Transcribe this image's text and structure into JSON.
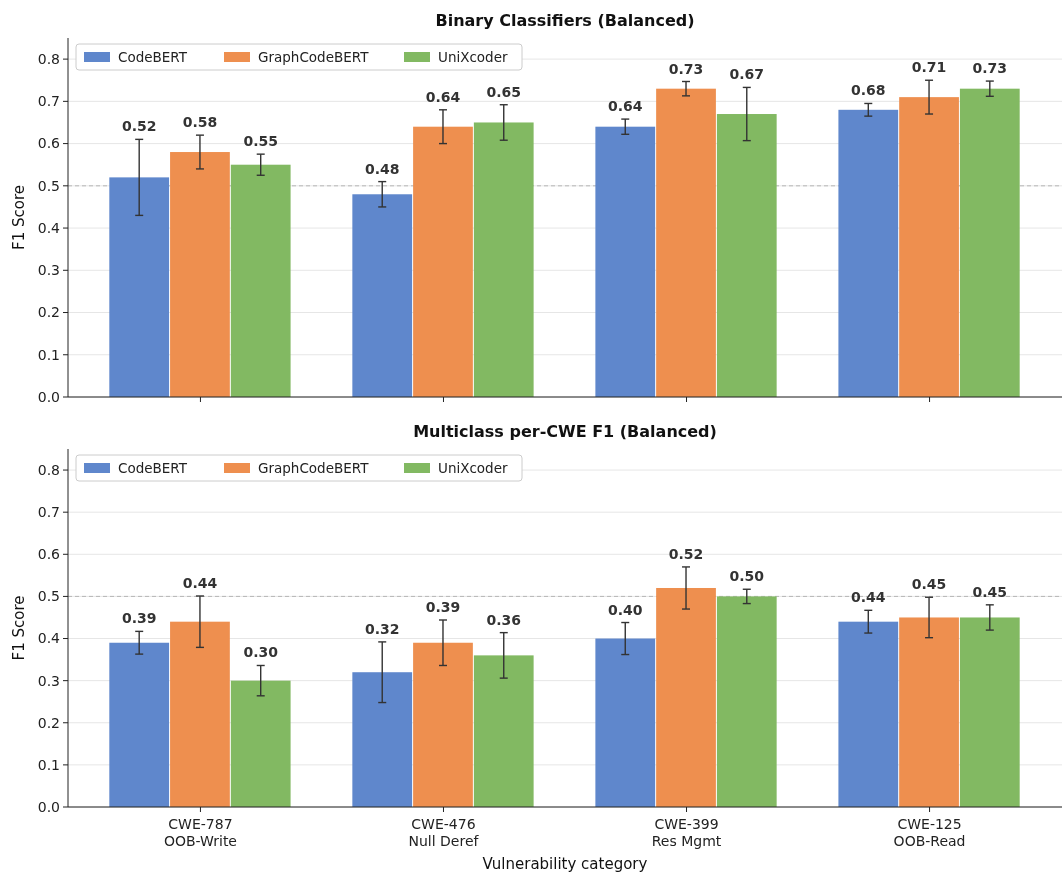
{
  "chart_data": [
    {
      "type": "bar",
      "title": "Binary Classifiers (Balanced)",
      "ylabel": "F1 Score",
      "categories": [
        null,
        null,
        null,
        null
      ],
      "series": [
        {
          "name": "CodeBERT",
          "color": "#5f87cc",
          "values": [
            0.52,
            0.48,
            0.64,
            0.68
          ],
          "errors": [
            0.09,
            0.03,
            0.018,
            0.015
          ],
          "value_labels": [
            "0.52",
            "0.48",
            "0.64",
            "0.68"
          ]
        },
        {
          "name": "GraphCodeBERT",
          "color": "#ee8f4f",
          "values": [
            0.58,
            0.64,
            0.73,
            0.71
          ],
          "errors": [
            0.04,
            0.04,
            0.017,
            0.04
          ],
          "value_labels": [
            "0.58",
            "0.64",
            "0.73",
            "0.71"
          ]
        },
        {
          "name": "UniXcoder",
          "color": "#82b962",
          "values": [
            0.55,
            0.65,
            0.67,
            0.73
          ],
          "errors": [
            0.025,
            0.042,
            0.063,
            0.018
          ],
          "value_labels": [
            "0.55",
            "0.65",
            "0.67",
            "0.73"
          ]
        }
      ],
      "ylim": [
        0,
        0.85
      ],
      "yticks": [
        {
          "value": 0,
          "label": "0.0"
        },
        0.1,
        0.2,
        0.3,
        0.4,
        0.5,
        0.6,
        0.7,
        0.8
      ],
      "grid": "y",
      "legend": "top left",
      "tick_labels": "y",
      "ref_lines": [
        {
          "axis": "y",
          "value": 0.5,
          "color": "#aaaaaa",
          "line_style": "dashed"
        }
      ]
    },
    {
      "type": "bar",
      "title": "Multiclass per-CWE F1 (Balanced)",
      "ylabel": "F1 Score",
      "xlabel": "Vulnerability category",
      "categories": [
        "CWE-787\nOOB-Write",
        "CWE-476\nNull Deref",
        "CWE-399\nRes Mgmt",
        "CWE-125\nOOB-Read"
      ],
      "series": [
        {
          "name": "CodeBERT",
          "color": "#5f87cc",
          "values": [
            0.39,
            0.32,
            0.4,
            0.44
          ],
          "errors": [
            0.027,
            0.072,
            0.038,
            0.027
          ],
          "value_labels": [
            "0.39",
            "0.32",
            "0.40",
            "0.44"
          ]
        },
        {
          "name": "GraphCodeBERT",
          "color": "#ee8f4f",
          "values": [
            0.44,
            0.39,
            0.52,
            0.45
          ],
          "errors": [
            0.061,
            0.054,
            0.05,
            0.048
          ],
          "value_labels": [
            "0.44",
            "0.39",
            "0.52",
            "0.45"
          ]
        },
        {
          "name": "UniXcoder",
          "color": "#82b962",
          "values": [
            0.3,
            0.36,
            0.5,
            0.45
          ],
          "errors": [
            0.036,
            0.054,
            0.017,
            0.03
          ],
          "value_labels": [
            "0.30",
            "0.36",
            "0.50",
            "0.45"
          ]
        }
      ],
      "ylim": [
        0,
        0.85
      ],
      "yticks": [
        {
          "value": 0,
          "label": "0.0"
        },
        0.1,
        0.2,
        0.3,
        0.4,
        0.5,
        0.6,
        0.7,
        0.8
      ],
      "grid": "y",
      "legend": "top left",
      "ref_lines": [
        {
          "axis": "y",
          "value": 0.5,
          "color": "#aaaaaa",
          "line_style": "dashed"
        }
      ]
    }
  ]
}
